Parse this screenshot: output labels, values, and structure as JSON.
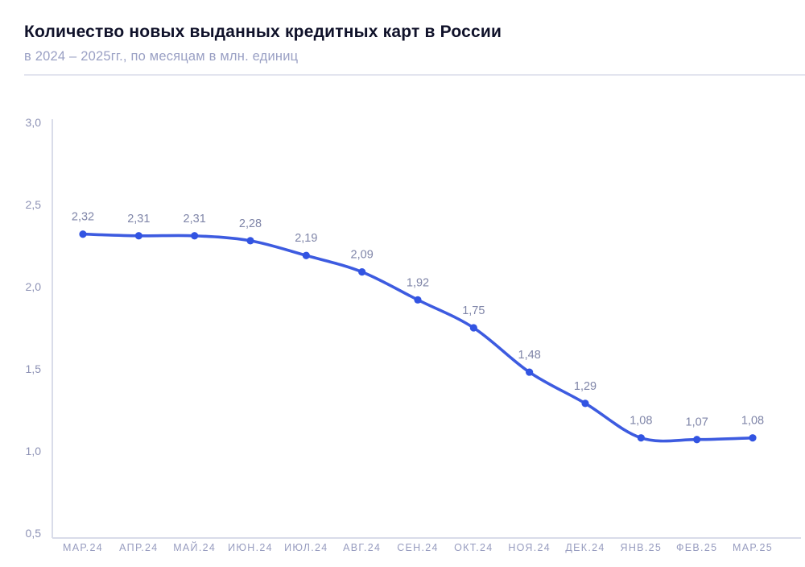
{
  "header": {
    "title": "Количество новых выданных кредитных карт в России",
    "subtitle": "в 2024 – 2025гг., по месяцам в млн. единиц"
  },
  "chart_data": {
    "type": "line",
    "title": "Количество новых выданных кредитных карт в России",
    "subtitle": "в 2024 – 2025гг., по месяцам в млн. единиц",
    "categories": [
      "МАР.24",
      "АПР.24",
      "МАЙ.24",
      "ИЮН.24",
      "ИЮЛ.24",
      "АВГ.24",
      "СЕН.24",
      "ОКТ.24",
      "НОЯ.24",
      "ДЕК.24",
      "ЯНВ.25",
      "ФЕВ.25",
      "МАР.25"
    ],
    "values": [
      2.32,
      2.31,
      2.31,
      2.28,
      2.19,
      2.09,
      1.92,
      1.75,
      1.48,
      1.29,
      1.08,
      1.07,
      1.08
    ],
    "point_labels": [
      "2,32",
      "2,31",
      "2,31",
      "2,28",
      "2,19",
      "2,09",
      "1,92",
      "1,75",
      "1,48",
      "1,29",
      "1,08",
      "1,07",
      "1,08"
    ],
    "xlabel": "",
    "ylabel": "",
    "ylim": [
      0.5,
      3.0
    ],
    "yticks": [
      3.0,
      2.5,
      2.0,
      1.5,
      1.0,
      0.5
    ],
    "ytick_labels": [
      "3,0",
      "2,5",
      "2,0",
      "1,5",
      "1,0",
      "0,5"
    ],
    "grid": false,
    "legend": "none",
    "colors": {
      "line": "#3d5be0",
      "marker": "#3254e2",
      "point_label": "#7f85a8",
      "ytick": "#8d92b5",
      "xtick": "#979cbf",
      "axis": "#d9dce9"
    }
  }
}
